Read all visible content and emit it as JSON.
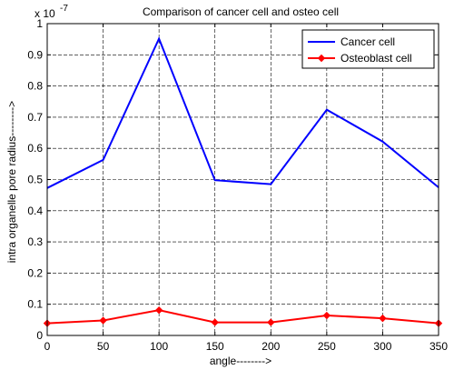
{
  "chart_data": {
    "type": "line",
    "title": "Comparison of cancer cell and osteo cell",
    "xlabel": "angle-------->",
    "ylabel": "intra organelle pore radius-------->",
    "y_exponent": "x 10",
    "y_exponent_power": "-7",
    "xlim": [
      0,
      350
    ],
    "ylim": [
      0,
      1
    ],
    "x_ticks": [
      0,
      50,
      100,
      150,
      200,
      250,
      300,
      350
    ],
    "y_ticks": [
      0,
      0.1,
      0.2,
      0.3,
      0.4,
      0.5,
      0.6,
      0.7,
      0.8,
      0.9,
      1
    ],
    "y_tick_labels": [
      "0",
      "0.1",
      "0.2",
      "0.3",
      "0.4",
      "0.5",
      "0.6",
      "0.7",
      "0.8",
      "0.9",
      "1"
    ],
    "grid": true,
    "legend_position": "top-right",
    "x": [
      0,
      50,
      100,
      150,
      200,
      250,
      300,
      350
    ],
    "series": [
      {
        "name": "Cancer cell",
        "color": "#0000ff",
        "marker": "none",
        "values": [
          0.473,
          0.563,
          0.952,
          0.498,
          0.485,
          0.724,
          0.622,
          0.475
        ]
      },
      {
        "name": "Osteoblast cell",
        "color": "#ff0000",
        "marker": "diamond",
        "values": [
          0.039,
          0.048,
          0.081,
          0.042,
          0.042,
          0.064,
          0.055,
          0.039
        ]
      }
    ]
  }
}
